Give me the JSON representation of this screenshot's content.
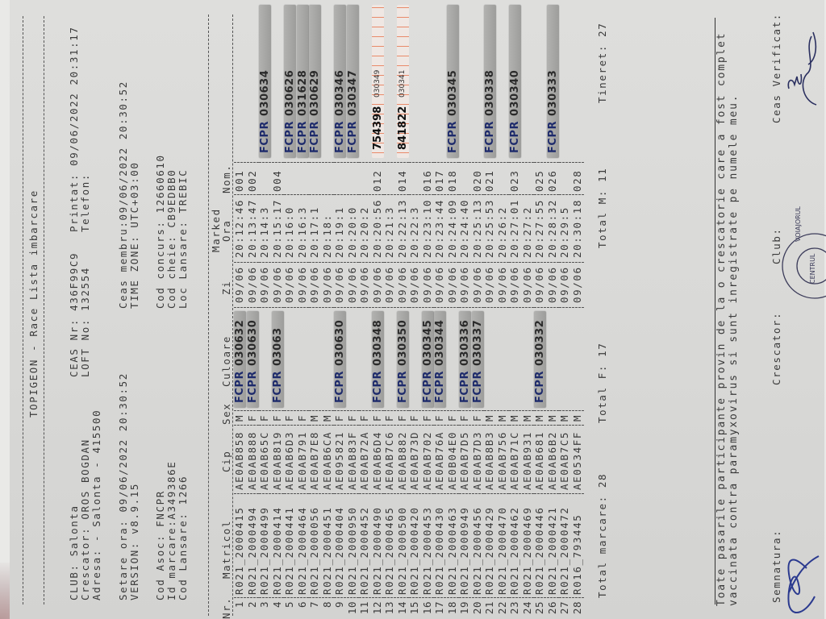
{
  "header": {
    "title": "TOPIGEON  -  Race Lista imbarcare",
    "club": "CLUB: Salonta",
    "crescator": "Crescator: OROS BOGDAN",
    "adresa": "Adresa: - Salonta - 415500",
    "ceas_nr": "CEAS Nr: 436F99C9",
    "loft_no": "LOFT No: 132554",
    "printat": "Printat: 09/06/2022 20:31:17",
    "telefon": "Telefon:",
    "setare_ora": "Setare ora:     09/06/2022 20:30:52",
    "version": "VERSION:        v8.9.15",
    "ceas_membru": "Ceas membru:09/06/2022 20:30:52",
    "time_zone": "TIME ZONE:        UTC+03:00",
    "cod_asoc": "Cod Asoc: FNCPR",
    "id_marcare": "Id marcare:A349386E",
    "cod_lansare": "Cod Lansare: 1266",
    "cod_concurs": "Cod concurs: 12660610",
    "cod_cheie": "Cod cheie: CB9EDBB0",
    "loc_lansare": "Loc Lansare: TREBIC"
  },
  "columns": {
    "nr": "Nr.",
    "matricol": "Matricol",
    "cip": "Cip",
    "sex": "Sex",
    "culoare": "Culoare",
    "zi": "Zi",
    "marked": "Marked",
    "ora": "Ora",
    "nom": "Nom."
  },
  "rows": [
    {
      "nr": "1",
      "matricol": "R021_2000415",
      "cip": "AE0AB858",
      "sex": "M",
      "zi": "09/06",
      "ora": "20:12:46",
      "nom": "001"
    },
    {
      "nr": "2",
      "matricol": "R021_2000494",
      "cip": "AE0AB888",
      "sex": "F",
      "zi": "09/06",
      "ora": "20:13:47",
      "nom": "002"
    },
    {
      "nr": "3",
      "matricol": "R021_2000499",
      "cip": "AE0AB65C",
      "sex": "F",
      "zi": "09/06",
      "ora": "20:14:3",
      "nom": ""
    },
    {
      "nr": "4",
      "matricol": "R021_2000414",
      "cip": "AE0AB819",
      "sex": "F",
      "zi": "09/06",
      "ora": "20:15:17",
      "nom": "004"
    },
    {
      "nr": "5",
      "matricol": "R021_2000441",
      "cip": "AE0AB6D3",
      "sex": "F",
      "zi": "09/06",
      "ora": "20:16:0",
      "nom": ""
    },
    {
      "nr": "6",
      "matricol": "R021_2000464",
      "cip": "AE0AB791",
      "sex": "F",
      "zi": "09/06",
      "ora": "20:16:3",
      "nom": ""
    },
    {
      "nr": "7",
      "matricol": "R021_2000056",
      "cip": "AE0AB7E8",
      "sex": "M",
      "zi": "09/06",
      "ora": "20:17:1",
      "nom": ""
    },
    {
      "nr": "8",
      "matricol": "R021_2000451",
      "cip": "AE0AB6CA",
      "sex": "M",
      "zi": "09/06",
      "ora": "20:18:",
      "nom": ""
    },
    {
      "nr": "9",
      "matricol": "R021_2000404",
      "cip": "AE095821",
      "sex": "F",
      "zi": "09/06",
      "ora": "20:19:1",
      "nom": ""
    },
    {
      "nr": "10",
      "matricol": "R021_2000950",
      "cip": "AE0AB83F",
      "sex": "F",
      "zi": "09/06",
      "ora": "20:20:0",
      "nom": ""
    },
    {
      "nr": "11",
      "matricol": "R021_2000452",
      "cip": "AE0AB72A",
      "sex": "F",
      "zi": "09/06",
      "ora": "20:20:2",
      "nom": ""
    },
    {
      "nr": "12",
      "matricol": "R021_2000490",
      "cip": "AE0AB6D4",
      "sex": "F",
      "zi": "09/06",
      "ora": "20:20:56",
      "nom": "012"
    },
    {
      "nr": "13",
      "matricol": "R021_2000465",
      "cip": "AE0AB7C6",
      "sex": "F",
      "zi": "09/06",
      "ora": "20:21:3",
      "nom": ""
    },
    {
      "nr": "14",
      "matricol": "R021_2000500",
      "cip": "AE0AB882",
      "sex": "F",
      "zi": "09/06",
      "ora": "20:22:13",
      "nom": "014"
    },
    {
      "nr": "15",
      "matricol": "R021_2000420",
      "cip": "AE0AB73D",
      "sex": "F",
      "zi": "09/06",
      "ora": "20:22:3",
      "nom": ""
    },
    {
      "nr": "16",
      "matricol": "R021_2000453",
      "cip": "AE0AB702",
      "sex": "F",
      "zi": "09/06",
      "ora": "20:23:10",
      "nom": "016"
    },
    {
      "nr": "17",
      "matricol": "R021_2000430",
      "cip": "AE0AB76A",
      "sex": "F",
      "zi": "09/06",
      "ora": "20:23:44",
      "nom": "017"
    },
    {
      "nr": "18",
      "matricol": "R021_2000463",
      "cip": "AE0B04E0",
      "sex": "F",
      "zi": "09/06",
      "ora": "20:24:09",
      "nom": "018"
    },
    {
      "nr": "19",
      "matricol": "R021_2000949",
      "cip": "AE0AB7D5",
      "sex": "F",
      "zi": "09/06",
      "ora": "20:24:40",
      "nom": ""
    },
    {
      "nr": "20",
      "matricol": "R021_2000456",
      "cip": "AE0AB7D3",
      "sex": "F",
      "zi": "09/06",
      "ora": "20:25:13",
      "nom": "020"
    },
    {
      "nr": "21",
      "matricol": "R021_2000429",
      "cip": "AE0AB8B3",
      "sex": "M",
      "zi": "09/06",
      "ora": "20:25:53",
      "nom": "021"
    },
    {
      "nr": "22",
      "matricol": "R021_2000470",
      "cip": "AE0AB756",
      "sex": "M",
      "zi": "09/06",
      "ora": "20:26:2",
      "nom": ""
    },
    {
      "nr": "23",
      "matricol": "R021_2000462",
      "cip": "AE0AB71C",
      "sex": "M",
      "zi": "09/06",
      "ora": "20:27:01",
      "nom": "023"
    },
    {
      "nr": "24",
      "matricol": "R021_2000469",
      "cip": "AE0AB931",
      "sex": "M",
      "zi": "09/06",
      "ora": "20:27:2",
      "nom": ""
    },
    {
      "nr": "25",
      "matricol": "R021_2000446",
      "cip": "AE0AB681",
      "sex": "M",
      "zi": "09/06",
      "ora": "20:27:55",
      "nom": "025"
    },
    {
      "nr": "26",
      "matricol": "R021_2000421",
      "cip": "AE0AB6B2",
      "sex": "M",
      "zi": "09/06",
      "ora": "20:28:32",
      "nom": "026"
    },
    {
      "nr": "27",
      "matricol": "R021_2000472",
      "cip": "AE0AB7C5",
      "sex": "M",
      "zi": "09/06",
      "ora": "20:29:5",
      "nom": ""
    },
    {
      "nr": "28",
      "matricol": "R016_793445",
      "cip": "AE0534FF",
      "sex": "M",
      "zi": "09/06",
      "ora": "20:30:18",
      "nom": "028"
    }
  ],
  "culoare_stickers": [
    {
      "row": 1,
      "prefix": "FCPR",
      "number": "030632"
    },
    {
      "row": 2,
      "prefix": "FCPR",
      "number": "030630"
    },
    {
      "row": 4,
      "prefix": "FCPR",
      "number": "03063"
    },
    {
      "row": 9,
      "prefix": "FCPR",
      "number": "030630"
    },
    {
      "row": 12,
      "prefix": "FCPR",
      "number": "030348"
    },
    {
      "row": 14,
      "prefix": "FCPR",
      "number": "030350"
    },
    {
      "row": 16,
      "prefix": "FCPR",
      "number": "030345"
    },
    {
      "row": 17,
      "prefix": "FCPR",
      "number": "030344"
    },
    {
      "row": 19,
      "prefix": "FCPR",
      "number": "030336"
    },
    {
      "row": 20,
      "prefix": "FCPR",
      "number": "030337"
    },
    {
      "row": 25,
      "prefix": "FCPR",
      "number": "030332"
    }
  ],
  "nom_stickers": [
    {
      "row": 3,
      "prefix": "FCPR",
      "number": "030634"
    },
    {
      "row": 5,
      "prefix": "FCPR",
      "number": "030626"
    },
    {
      "row": 6,
      "prefix": "FCPR",
      "number": "031628"
    },
    {
      "row": 7,
      "prefix": "FCPR",
      "number": "030629"
    },
    {
      "row": 9,
      "prefix": "FCPR",
      "number": "030346"
    },
    {
      "row": 10,
      "prefix": "FCPR",
      "number": "030347"
    },
    {
      "row": 18,
      "prefix": "FCPR",
      "number": "030345"
    },
    {
      "row": 21,
      "prefix": "FCPR",
      "number": "030338"
    },
    {
      "row": 23,
      "prefix": "FCPR",
      "number": "030340"
    },
    {
      "row": 26,
      "prefix": "FCPR",
      "number": "030333"
    }
  ],
  "orange_stickers": [
    {
      "row": 12,
      "main": "754398",
      "small": "030349"
    },
    {
      "row": 14,
      "main": "841822",
      "small": "030341"
    }
  ],
  "totals": {
    "marcare": "Total marcare: 28",
    "f": "Total F: 17",
    "m": "Total M: 11",
    "tineret": "Tineret: 27"
  },
  "footer": {
    "declaration_1": "Toate pasarile participante provin de la o crescatorie care a fost complet",
    "declaration_2": "vaccinata contra paramyxovirus si sunt inregistrate pe numele meu.",
    "semnatura": "Semnatura:",
    "crescator": "Crescator:",
    "club": "Club:",
    "ceas_verificat": "Ceas Verificat:",
    "stamp_text": "COLUMBOFILA \"VOIAJORUL\" CENTRUL SALONTA"
  },
  "colors": {
    "paper": "#d9d9d7",
    "ink": "#3a3a3a",
    "sticker": "#a8a8a6",
    "sticker_text": "#1d2a6b",
    "signature": "#2b3a8f"
  }
}
